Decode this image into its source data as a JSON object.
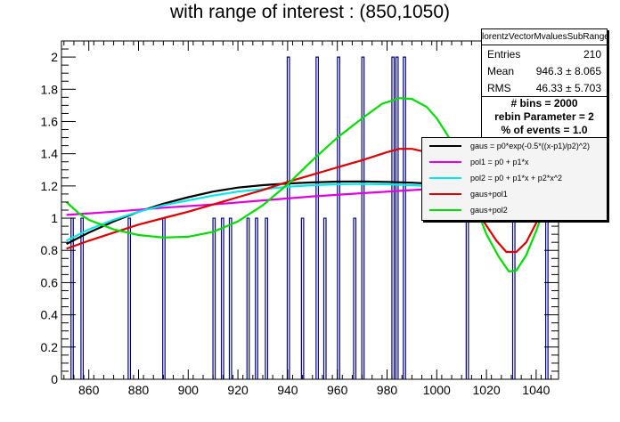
{
  "title": "with range of interest : (850,1050)",
  "stats": {
    "name": "lorentzVectorMvaluesSubRange",
    "rows": [
      {
        "label": "Entries",
        "value": "210"
      },
      {
        "label": "Mean",
        "value": "946.3 ±  8.065"
      },
      {
        "label": "RMS",
        "value": "46.33 ±  5.703"
      }
    ]
  },
  "info": {
    "lines": [
      "# bins = 2000",
      "rebin Parameter = 2",
      "% of events = 1.0"
    ]
  },
  "legend": [
    {
      "label": "gaus = p0*exp(-0.5*((x-p1)/p2)^2)",
      "color": "#000000"
    },
    {
      "label": "pol1 = p0 + p1*x",
      "color": "#e000e0"
    },
    {
      "label": "pol2 = p0 + p1*x + p2*x^2",
      "color": "#00e8e8"
    },
    {
      "label": "gaus+pol1",
      "color": "#dd0000"
    },
    {
      "label": "gaus+pol2",
      "color": "#00dd00"
    }
  ],
  "chart_data": {
    "type": "histogram",
    "title": "with range of interest : (850,1050)",
    "xlim": [
      849,
      1049
    ],
    "ylim": [
      0,
      2.1
    ],
    "x_ticks": [
      860,
      880,
      900,
      920,
      940,
      960,
      980,
      1000,
      1020,
      1040
    ],
    "y_ticks": [
      0,
      0.2,
      0.4,
      0.6,
      0.8,
      1,
      1.2,
      1.4,
      1.6,
      1.8,
      2
    ],
    "x_tick_labels": [
      "860",
      "880",
      "900",
      "920",
      "940",
      "960",
      "980",
      "1000",
      "1020",
      "1040"
    ],
    "y_tick_labels": [
      "0",
      "0.2",
      "0.4",
      "0.6",
      "0.8",
      "1",
      "1.2",
      "1.4",
      "1.6",
      "1.8",
      "2"
    ],
    "bin_width": 0.9,
    "histogram_color": "#000080",
    "bins": [
      {
        "x": 853.3,
        "y": 1
      },
      {
        "x": 857.3,
        "y": 1
      },
      {
        "x": 876.3,
        "y": 1
      },
      {
        "x": 890.2,
        "y": 1
      },
      {
        "x": 910.4,
        "y": 1
      },
      {
        "x": 913.8,
        "y": 1
      },
      {
        "x": 917.0,
        "y": 1
      },
      {
        "x": 924.1,
        "y": 1
      },
      {
        "x": 927.5,
        "y": 1
      },
      {
        "x": 931.5,
        "y": 1
      },
      {
        "x": 940.3,
        "y": 2
      },
      {
        "x": 946.0,
        "y": 1
      },
      {
        "x": 951.9,
        "y": 2
      },
      {
        "x": 955.0,
        "y": 1
      },
      {
        "x": 960.5,
        "y": 2
      },
      {
        "x": 967.0,
        "y": 1
      },
      {
        "x": 970.3,
        "y": 2
      },
      {
        "x": 982.4,
        "y": 2
      },
      {
        "x": 984.0,
        "y": 2
      },
      {
        "x": 987.0,
        "y": 2
      },
      {
        "x": 1012.3,
        "y": 1
      },
      {
        "x": 1031.0,
        "y": 1
      },
      {
        "x": 1044.3,
        "y": 1
      }
    ],
    "series": [
      {
        "name": "gaus = p0*exp(-0.5*((x-p1)/p2)^2)",
        "color": "#000000",
        "points": [
          [
            851,
            0.84
          ],
          [
            860,
            0.91
          ],
          [
            870,
            0.98
          ],
          [
            880,
            1.04
          ],
          [
            890,
            1.09
          ],
          [
            900,
            1.13
          ],
          [
            910,
            1.165
          ],
          [
            920,
            1.19
          ],
          [
            930,
            1.205
          ],
          [
            940,
            1.215
          ],
          [
            950,
            1.222
          ],
          [
            960,
            1.227
          ],
          [
            970,
            1.228
          ],
          [
            980,
            1.225
          ],
          [
            990,
            1.22
          ],
          [
            996,
            1.215
          ]
        ]
      },
      {
        "name": "pol1 = p0 + p1*x",
        "color": "#e000e0",
        "points": [
          [
            851,
            1.02
          ],
          [
            870,
            1.04
          ],
          [
            890,
            1.065
          ],
          [
            910,
            1.085
          ],
          [
            930,
            1.11
          ],
          [
            950,
            1.135
          ],
          [
            970,
            1.155
          ],
          [
            996,
            1.18
          ]
        ]
      },
      {
        "name": "pol2 = p0 + p1*x + p2*x^2",
        "color": "#00e8e8",
        "points": [
          [
            851,
            0.86
          ],
          [
            860,
            0.93
          ],
          [
            870,
            0.99
          ],
          [
            880,
            1.04
          ],
          [
            890,
            1.08
          ],
          [
            900,
            1.11
          ],
          [
            910,
            1.14
          ],
          [
            920,
            1.165
          ],
          [
            930,
            1.18
          ],
          [
            940,
            1.195
          ],
          [
            950,
            1.205
          ],
          [
            960,
            1.21
          ],
          [
            970,
            1.213
          ],
          [
            980,
            1.21
          ],
          [
            990,
            1.205
          ],
          [
            996,
            1.2
          ]
        ]
      },
      {
        "name": "gaus+pol1",
        "color": "#dd0000",
        "points": [
          [
            851,
            0.81
          ],
          [
            860,
            0.86
          ],
          [
            870,
            0.91
          ],
          [
            880,
            0.96
          ],
          [
            890,
            1.0
          ],
          [
            900,
            1.04
          ],
          [
            910,
            1.085
          ],
          [
            920,
            1.13
          ],
          [
            930,
            1.175
          ],
          [
            940,
            1.225
          ],
          [
            950,
            1.27
          ],
          [
            960,
            1.315
          ],
          [
            970,
            1.36
          ],
          [
            980,
            1.41
          ],
          [
            985,
            1.43
          ],
          [
            990,
            1.43
          ],
          [
            996,
            1.41
          ],
          [
            1000,
            1.37
          ],
          [
            1010,
            1.2
          ],
          [
            1018,
            1.0
          ],
          [
            1024,
            0.86
          ],
          [
            1028,
            0.79
          ],
          [
            1032,
            0.79
          ],
          [
            1036,
            0.85
          ],
          [
            1040,
            0.97
          ],
          [
            1043,
            1.06
          ]
        ]
      },
      {
        "name": "gaus+pol2",
        "color": "#00dd00",
        "points": [
          [
            851,
            1.1
          ],
          [
            856,
            1.03
          ],
          [
            860,
            0.99
          ],
          [
            870,
            0.93
          ],
          [
            880,
            0.895
          ],
          [
            890,
            0.88
          ],
          [
            900,
            0.885
          ],
          [
            910,
            0.915
          ],
          [
            920,
            0.98
          ],
          [
            930,
            1.08
          ],
          [
            940,
            1.21
          ],
          [
            950,
            1.36
          ],
          [
            960,
            1.5
          ],
          [
            970,
            1.62
          ],
          [
            978,
            1.71
          ],
          [
            985,
            1.745
          ],
          [
            990,
            1.74
          ],
          [
            996,
            1.69
          ],
          [
            1000,
            1.62
          ],
          [
            1005,
            1.5
          ],
          [
            1010,
            1.31
          ],
          [
            1015,
            1.1
          ],
          [
            1020,
            0.9
          ],
          [
            1025,
            0.76
          ],
          [
            1029,
            0.67
          ],
          [
            1032,
            0.675
          ],
          [
            1036,
            0.77
          ],
          [
            1040,
            0.92
          ],
          [
            1043,
            1.05
          ]
        ]
      }
    ]
  }
}
